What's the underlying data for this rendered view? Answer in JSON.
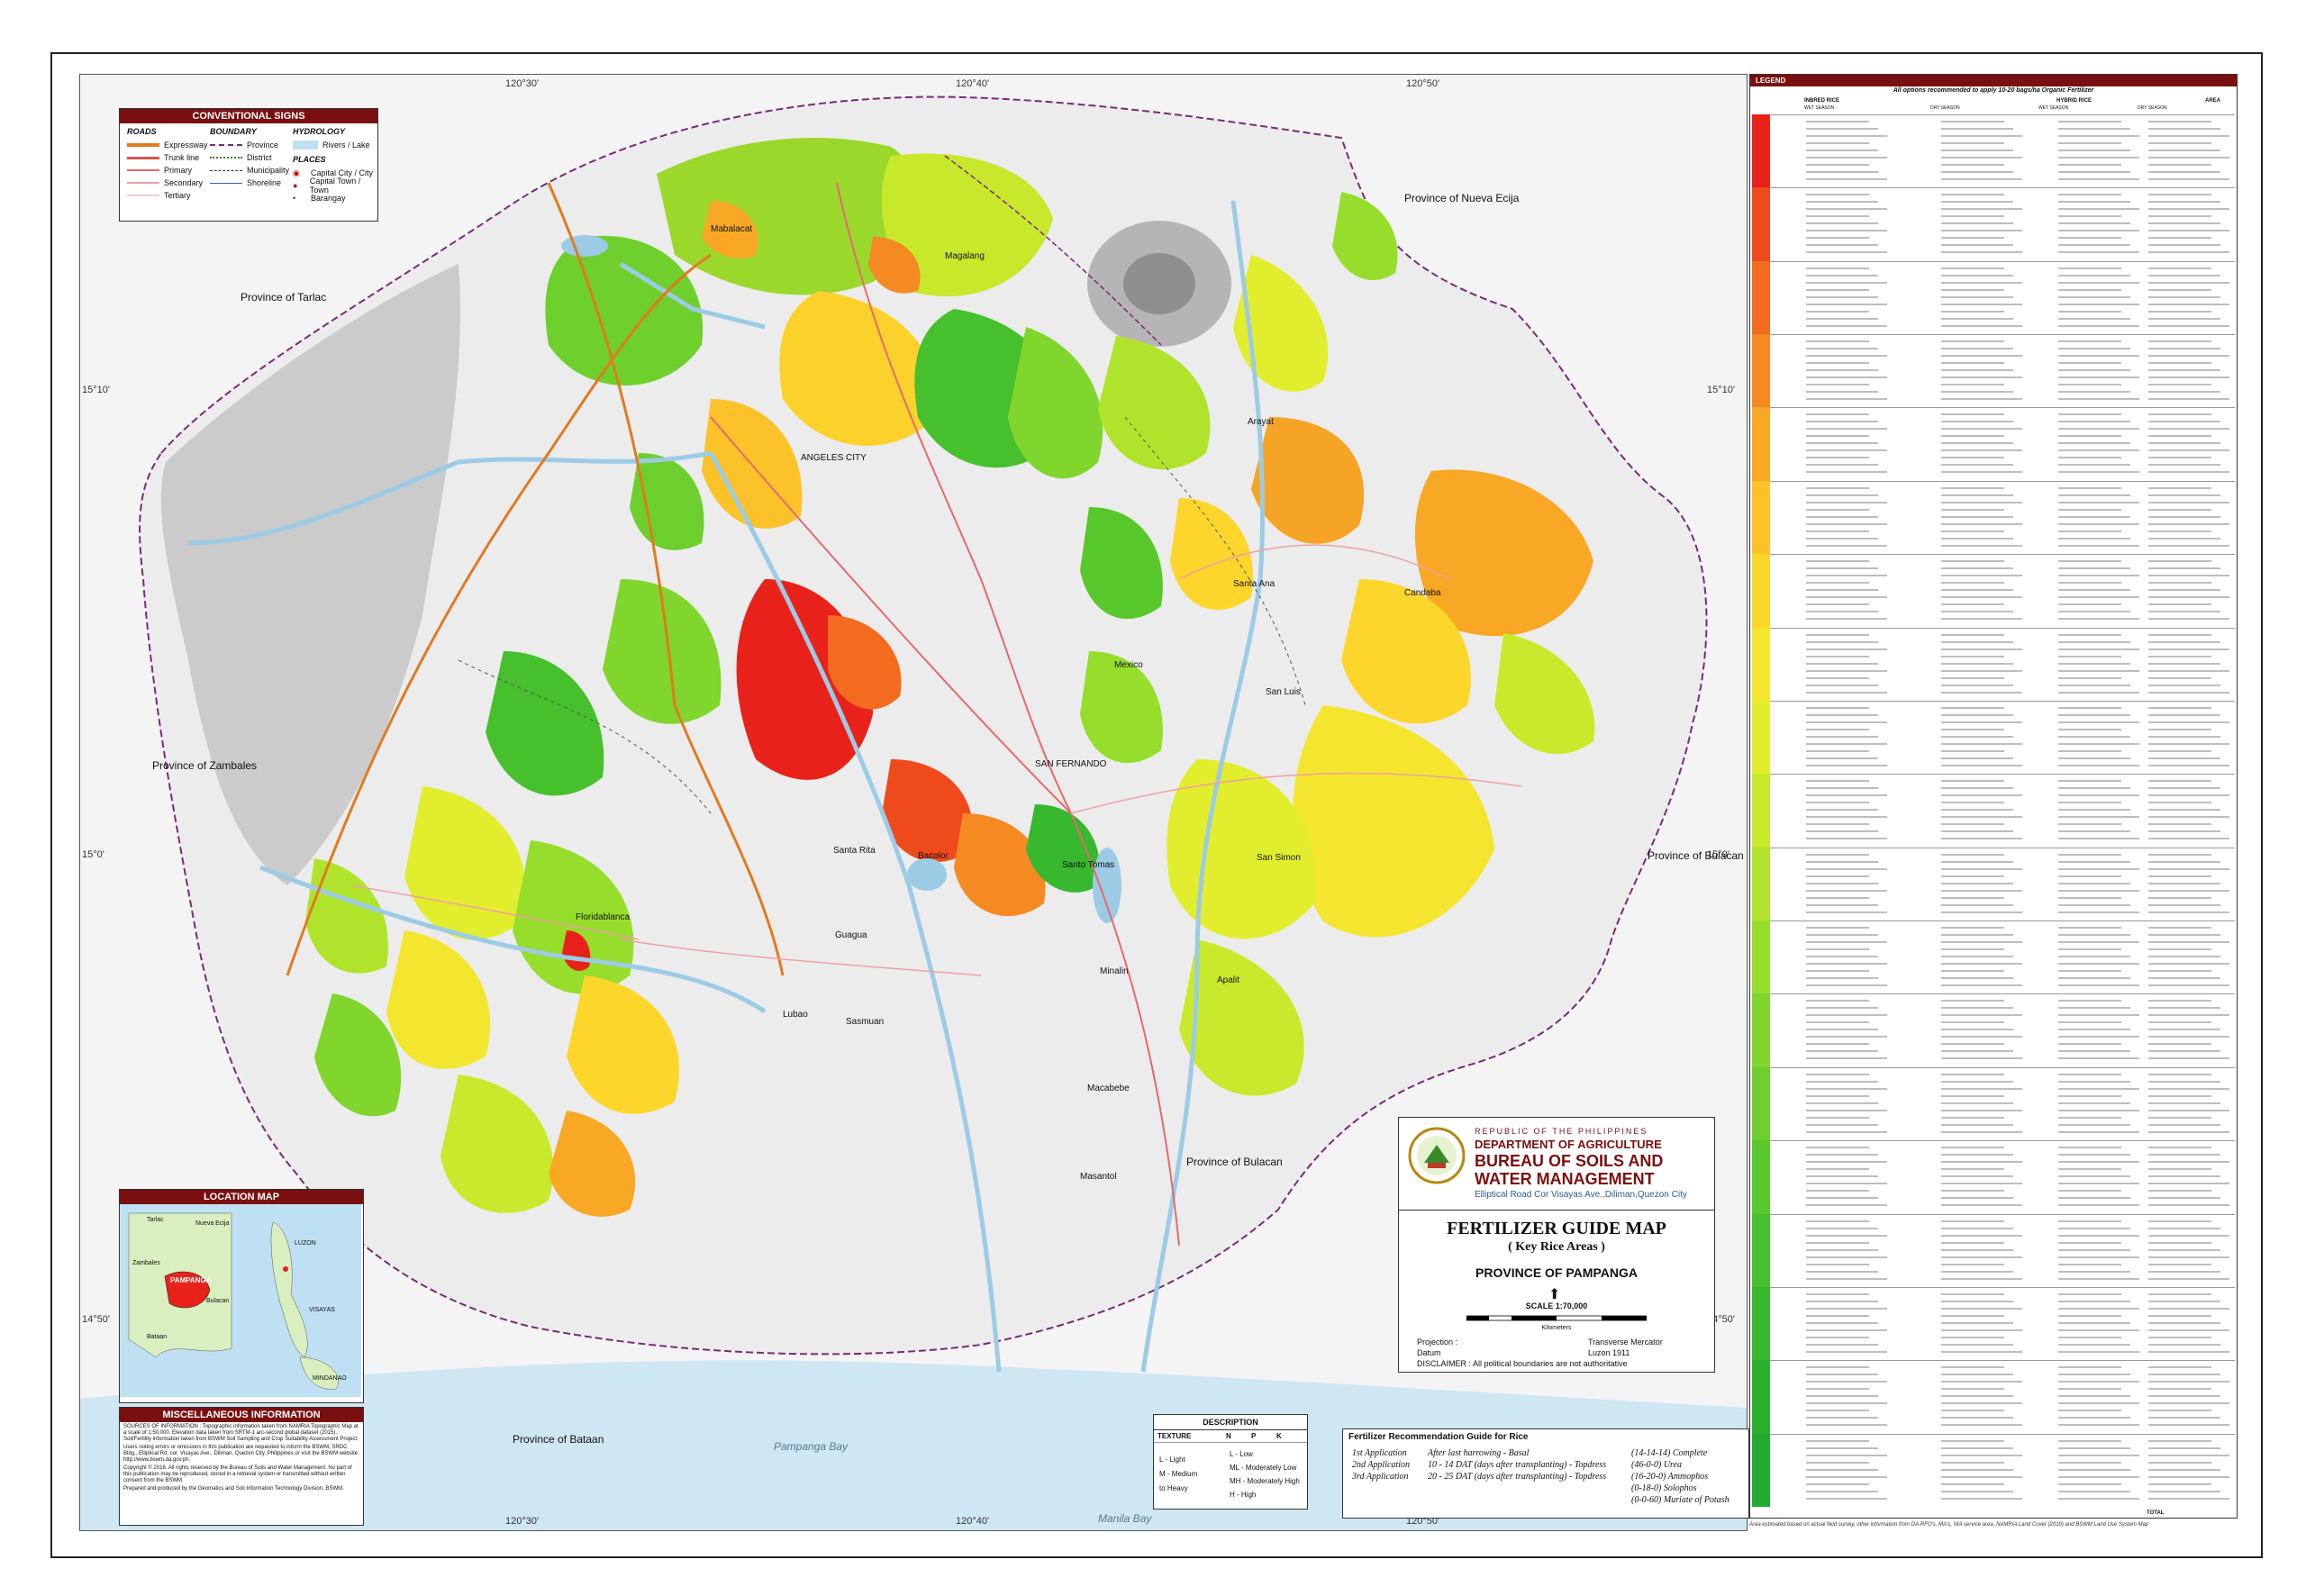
{
  "graticule": {
    "top": [
      "120°30'",
      "120°40'",
      "120°50'"
    ],
    "bottom": [
      "120°30'",
      "120°40'",
      "120°50'"
    ],
    "left": [
      "15°10'",
      "15°0'",
      "14°50'"
    ],
    "right": [
      "15°10'",
      "15°0'",
      "14°50'"
    ]
  },
  "neighbors": [
    "Province of Tarlac",
    "Province of Nueva Ecija",
    "Province of Zambales",
    "Province of Bulacan",
    "Province of Bulacan",
    "Province of Bataan"
  ],
  "towns": [
    "Mabalacat",
    "Magalang",
    "Arayat",
    "ANGELES CITY",
    "Santa Ana",
    "Candaba",
    "Mexico",
    "San Luis",
    "SAN FERNANDO",
    "Santa Rita",
    "Bacolor",
    "Santo Tomas",
    "San Simon",
    "Floridablanca",
    "Guagua",
    "Minalin",
    "Apalit",
    "Lubao",
    "Sasmuan",
    "Macabebe",
    "Masantol"
  ],
  "water_labels": [
    "Pampanga Bay",
    "Manila Bay"
  ],
  "conventional_signs": {
    "title": "CONVENTIONAL SIGNS",
    "roads_title": "ROADS",
    "roads": [
      "Expressway",
      "Trunk line",
      "Primary",
      "Secondary",
      "Tertiary"
    ],
    "boundary_title": "BOUNDARY",
    "boundary": [
      "Province",
      "District",
      "Municipality",
      "Shoreline"
    ],
    "hydrology_title": "HYDROLOGY",
    "hydrology": [
      "Rivers / Lake"
    ],
    "places_title": "PLACES",
    "places": [
      "Capital City / City",
      "Capital Town / Town",
      "Barangay"
    ]
  },
  "location_map": {
    "title": "LOCATION MAP",
    "labels": [
      "Tarlac",
      "Nueva Ecija",
      "Zambales",
      "PAMPANGA",
      "Bulacan",
      "Bataan",
      "LUZON",
      "VISAYAS",
      "MINDANAO"
    ]
  },
  "misc": {
    "title": "MISCELLANEOUS INFORMATION",
    "paragraphs": [
      "SOURCES OF INFORMATION : Topographic information taken from NAMRIA Topographic Map at a scale of 1:50,000. Elevation data taken from SRTM-1 arc-second global dataset (2015). Soil/Fertility information taken from BSWM Soil Sampling and Crop Suitability Assessment Project.",
      "Users noting errors or omissions in this publication are requested to inform the BSWM, SRDC Bldg., Elliptical Rd. cor. Visayas Ave., Diliman, Quezon City, Philippines or visit the BSWM website http://www.bswm.da.gov.ph.",
      "Copyright © 2016. All rights reserved by the Bureau of Soils and Water Management. No part of this publication may be reproduced, stored in a retrieval system or transmitted without written consent from the BSWM.",
      "Prepared and produced by the Geomatics and Soil Information Technology Division, BSWM."
    ]
  },
  "title_block": {
    "republic": "REPUBLIC OF THE PHILIPPINES",
    "department": "DEPARTMENT OF AGRICULTURE",
    "bureau1": "BUREAU OF SOILS AND",
    "bureau2": "WATER MANAGEMENT",
    "address": "Elliptical Road Cor Visayas Ave.,Diliman,Quezon City",
    "map_title": "FERTILIZER GUIDE MAP",
    "map_subtitle": "( Key Rice Areas )",
    "province": "PROVINCE OF PAMPANGA",
    "scale": "SCALE   1:70,000",
    "scale_unit": "Kilometers",
    "projection_label": "Projection :",
    "projection_value": "Transverse Mercator",
    "datum_label": "Datum",
    "datum_value": "Luzon 1911",
    "disclaimer": "DISCLAIMER : All political boundaries are not authoritative"
  },
  "description": {
    "title": "DESCRIPTION",
    "headers": [
      "TEXTURE",
      "N",
      "P",
      "K"
    ],
    "texture": [
      "L - Light",
      "M - Medium",
      "to Heavy"
    ],
    "levels": [
      "L - Low",
      "ML - Moderately Low",
      "MH - Moderately High",
      "H - High"
    ]
  },
  "guide": {
    "title": "Fertilizer Recommendation Guide for Rice",
    "rows": [
      {
        "app": "1st Application",
        "timing": "After last harrowing - Basal",
        "fert": "(14-14-14)  Complete"
      },
      {
        "app": "2nd Application",
        "timing": "10 - 14 DAT (days after transplanting) - Topdress",
        "fert": "(46-0-0)  Urea"
      },
      {
        "app": "3rd Application",
        "timing": "20 - 25 DAT (days after transplanting) - Topdress",
        "fert": "(16-20-0)  Ammophos"
      }
    ],
    "extra": [
      "(0-18-0)  Solophos",
      "(0-0-60)  Muriate of Potash"
    ]
  },
  "legend": {
    "title": "LEGEND",
    "note": "All options recommended to apply 10-20 bags/ha Organic Fertilizer",
    "groups": [
      "INBRED RICE",
      "HYBRID RICE"
    ],
    "seasons": [
      "WET SEASON",
      "DRY SEASON",
      "WET SEASON",
      "DRY SEASON"
    ],
    "area_label": "AREA",
    "total_label": "TOTAL",
    "footnote": "Area estimated based on actual field survey, other information from DA-RFO's, MA's, NIA service area, NAMRIA Land Cover (2010) and BSWM Land Use System Map",
    "colors": [
      "#e8221a",
      "#ee4a1c",
      "#f26b1f",
      "#f58a22",
      "#f8a825",
      "#fbc229",
      "#fdd62c",
      "#f4e62e",
      "#e2ee2d",
      "#c9ea2c",
      "#b0e42c",
      "#97dd2c",
      "#80d62c",
      "#6ccf2d",
      "#58c82d",
      "#46c02d",
      "#37b82e",
      "#2cb12f",
      "#23aa30"
    ]
  }
}
